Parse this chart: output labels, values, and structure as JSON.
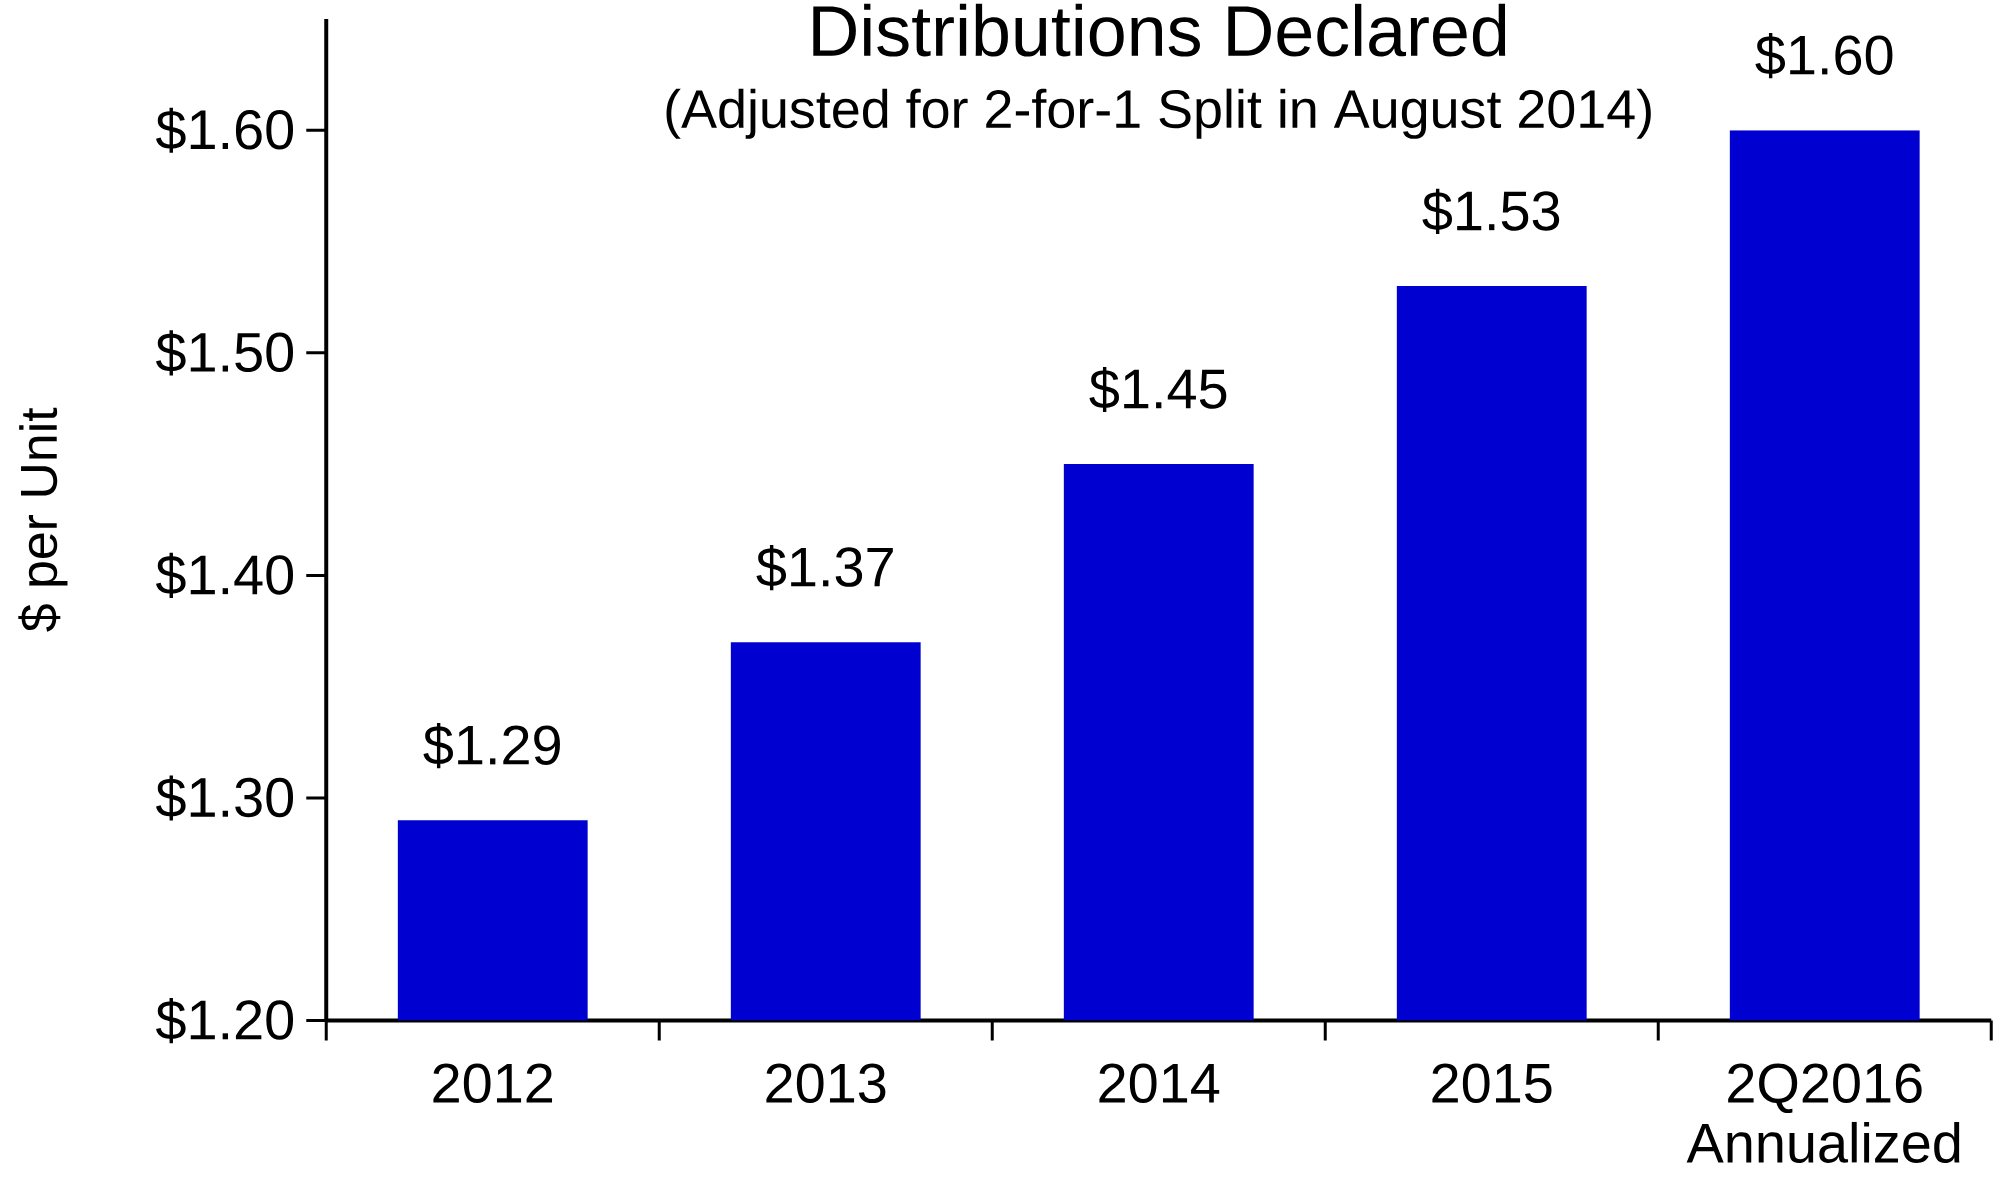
{
  "chart_data": {
    "type": "bar",
    "title": "Distributions Declared",
    "subtitle": "(Adjusted for 2-for-1 Split in August 2014)",
    "ylabel": "$ per Unit",
    "categories": [
      "2012",
      "2013",
      "2014",
      "2015",
      "2Q2016 Annualized"
    ],
    "values": [
      1.29,
      1.37,
      1.45,
      1.53,
      1.6
    ],
    "value_labels": [
      "$1.29",
      "$1.37",
      "$1.45",
      "$1.53",
      "$1.60"
    ],
    "color": "#0000d0",
    "ylim": [
      1.2,
      1.65
    ],
    "yticks": [
      {
        "value": 1.2,
        "label": "$1.20"
      },
      {
        "value": 1.3,
        "label": "$1.30"
      },
      {
        "value": 1.4,
        "label": "$1.40"
      },
      {
        "value": 1.5,
        "label": "$1.50"
      },
      {
        "value": 1.6,
        "label": "$1.60"
      }
    ]
  }
}
